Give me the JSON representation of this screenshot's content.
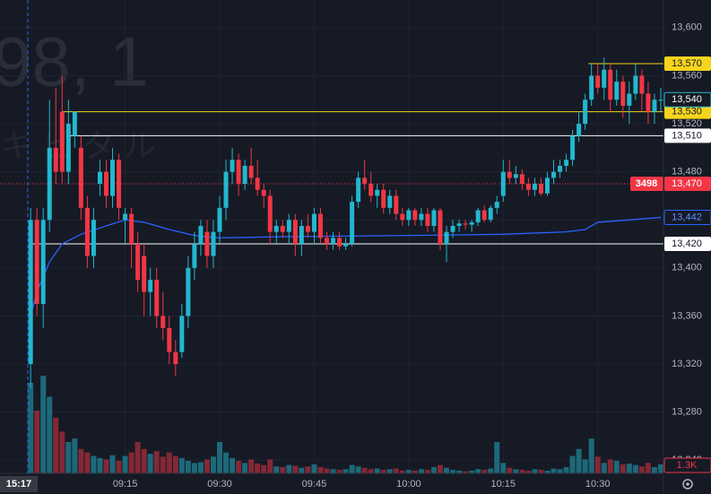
{
  "chart_data": {
    "type": "candlestick",
    "watermark": [
      "98, 1",
      "キピタル"
    ],
    "open": [
      13320,
      13440,
      13370,
      13440,
      13500,
      13530,
      13480,
      13510,
      13500,
      13450,
      13410,
      13470,
      13480,
      13460,
      13490,
      13440,
      13445,
      13420,
      13410,
      13380,
      13390,
      13360,
      13350,
      13330,
      13330,
      13360,
      13400,
      13420,
      13430,
      13410,
      13430,
      13450,
      13480,
      13490,
      13470,
      13485,
      13475,
      13465,
      13460,
      13430,
      13435,
      13430,
      13440,
      13420,
      13435,
      13430,
      13445,
      13425,
      13420,
      13425,
      13418,
      13420,
      13455,
      13475,
      13470,
      13460,
      13465,
      13450,
      13460,
      13445,
      13440,
      13448,
      13440,
      13445,
      13435,
      13448,
      13420,
      13430,
      13435,
      13437,
      13436,
      13438,
      13448,
      13440,
      13450,
      13460,
      13480,
      13475,
      13478,
      13470,
      13465,
      13470,
      13462,
      13475,
      13480,
      13485,
      13490,
      13510,
      13520,
      13540,
      13560,
      13550,
      13565,
      13540,
      13555,
      13535,
      13545,
      13560,
      13545,
      13530,
      13540
    ],
    "high": [
      13450,
      13450,
      13450,
      13540,
      13550,
      13560,
      13540,
      13530,
      13510,
      13460,
      13450,
      13490,
      13490,
      13500,
      13495,
      13450,
      13450,
      13430,
      13420,
      13400,
      13400,
      13380,
      13360,
      13340,
      13370,
      13410,
      13430,
      13440,
      13440,
      13440,
      13460,
      13490,
      13500,
      13495,
      13490,
      13500,
      13490,
      13470,
      13465,
      13440,
      13440,
      13445,
      13445,
      13440,
      13445,
      13450,
      13450,
      13430,
      13430,
      13430,
      13425,
      13460,
      13480,
      13490,
      13480,
      13470,
      13470,
      13465,
      13465,
      13450,
      13450,
      13450,
      13450,
      13450,
      13450,
      13450,
      13435,
      13440,
      13440,
      13440,
      13440,
      13450,
      13452,
      13452,
      13460,
      13490,
      13490,
      13485,
      13482,
      13475,
      13475,
      13475,
      13480,
      13490,
      13490,
      13495,
      13515,
      13530,
      13545,
      13570,
      13570,
      13575,
      13570,
      13565,
      13560,
      13555,
      13570,
      13565,
      13555,
      13545,
      13550
    ],
    "low": [
      13300,
      13360,
      13350,
      13430,
      13470,
      13470,
      13470,
      13500,
      13440,
      13400,
      13400,
      13460,
      13450,
      13450,
      13440,
      13420,
      13400,
      13380,
      13360,
      13360,
      13350,
      13340,
      13320,
      13310,
      13325,
      13350,
      13390,
      13410,
      13400,
      13400,
      13420,
      13440,
      13470,
      13460,
      13465,
      13470,
      13460,
      13450,
      13420,
      13420,
      13425,
      13420,
      13410,
      13410,
      13425,
      13420,
      13420,
      13415,
      13415,
      13415,
      13415,
      13418,
      13450,
      13465,
      13455,
      13450,
      13445,
      13445,
      13440,
      13435,
      13435,
      13435,
      13435,
      13430,
      13430,
      13415,
      13405,
      13425,
      13430,
      13432,
      13430,
      13435,
      13438,
      13438,
      13445,
      13455,
      13470,
      13470,
      13465,
      13460,
      13460,
      13460,
      13460,
      13470,
      13475,
      13480,
      13485,
      13505,
      13515,
      13535,
      13545,
      13540,
      13530,
      13535,
      13525,
      13520,
      13540,
      13530,
      13520,
      13520,
      13530
    ],
    "close": [
      13440,
      13370,
      13440,
      13500,
      13480,
      13480,
      13520,
      13530,
      13450,
      13410,
      13440,
      13480,
      13460,
      13490,
      13450,
      13445,
      13420,
      13390,
      13380,
      13390,
      13360,
      13350,
      13330,
      13320,
      13360,
      13400,
      13420,
      13435,
      13410,
      13430,
      13450,
      13480,
      13490,
      13470,
      13485,
      13475,
      13465,
      13460,
      13430,
      13435,
      13430,
      13440,
      13420,
      13435,
      13430,
      13445,
      13425,
      13420,
      13425,
      13418,
      13420,
      13455,
      13475,
      13470,
      13460,
      13465,
      13450,
      13460,
      13445,
      13440,
      13448,
      13440,
      13445,
      13435,
      13448,
      13420,
      13430,
      13435,
      13437,
      13436,
      13438,
      13448,
      13440,
      13450,
      13455,
      13480,
      13475,
      13478,
      13470,
      13465,
      13470,
      13462,
      13475,
      13480,
      13485,
      13490,
      13510,
      13520,
      13540,
      13560,
      13550,
      13565,
      13540,
      13555,
      13535,
      13545,
      13560,
      13545,
      13530,
      13540,
      13540
    ],
    "up_color": "#22b8cf",
    "down_color": "#f23645",
    "volume": {
      "values": [
        13000,
        9000,
        14000,
        11000,
        8000,
        6000,
        4500,
        5000,
        3500,
        3000,
        2500,
        2200,
        2000,
        2600,
        1800,
        2500,
        3000,
        4500,
        3500,
        2800,
        3200,
        2400,
        3000,
        2500,
        2200,
        1800,
        1500,
        1600,
        2000,
        2400,
        4500,
        3000,
        2200,
        1800,
        1500,
        2000,
        1400,
        1200,
        2000,
        1000,
        900,
        1200,
        1100,
        800,
        1000,
        1300,
        900,
        700,
        600,
        500,
        600,
        1200,
        1000,
        800,
        600,
        700,
        500,
        600,
        700,
        400,
        500,
        400,
        600,
        500,
        900,
        1200,
        800,
        500,
        400,
        300,
        400,
        600,
        500,
        700,
        4500,
        1500,
        800,
        600,
        500,
        400,
        600,
        500,
        400,
        700,
        600,
        900,
        2500,
        3500,
        2000,
        5000,
        2400,
        1500,
        2000,
        1800,
        1300,
        1400,
        1200,
        1000,
        1500,
        900,
        1300
      ],
      "last_label": "1.3K",
      "lim": [
        0,
        18000
      ]
    },
    "vwap": {
      "x": [
        0,
        1,
        3,
        5,
        8,
        12,
        15,
        18,
        22,
        26,
        30,
        40,
        60,
        75,
        85,
        88,
        90,
        100
      ],
      "values": [
        13360,
        13380,
        13405,
        13420,
        13428,
        13435,
        13440,
        13438,
        13432,
        13427,
        13425,
        13426,
        13427,
        13428,
        13430,
        13432,
        13438,
        13442
      ],
      "color": "#2962ff",
      "label": {
        "value": 13442,
        "label": "13,442"
      }
    },
    "levels": [
      {
        "value": 13570,
        "label": "13,570",
        "color": "#f7d51d",
        "from": 88.5
      },
      {
        "value": 13530,
        "label": "13,530",
        "color": "#f7d51d",
        "from": 5
      },
      {
        "value": 13510,
        "label": "13,510",
        "color": "#ffffff",
        "from": 6
      },
      {
        "value": 13420,
        "label": "13,420",
        "color": "#ffffff",
        "from": 0
      }
    ],
    "last_price": {
      "value": 13540,
      "label": "13,540",
      "color": "#22b8cf"
    },
    "marker_price": {
      "value": 13470,
      "label": "13,470",
      "countdown": "3498",
      "color": "#f23645"
    },
    "ylim": [
      13229,
      13623
    ],
    "yticks": [
      {
        "value": 13600,
        "label": "13,600"
      },
      {
        "value": 13560,
        "label": "13,560"
      },
      {
        "value": 13520,
        "label": "13,520"
      },
      {
        "value": 13480,
        "label": "13,480"
      },
      {
        "value": 13440,
        "label": "13,440"
      },
      {
        "value": 13400,
        "label": "13,400"
      },
      {
        "value": 13360,
        "label": "13,360"
      },
      {
        "value": 13320,
        "label": "13,320"
      },
      {
        "value": 13280,
        "label": "13,280"
      },
      {
        "value": 13240,
        "label": "13,240"
      }
    ],
    "xlim": [
      -4.86,
      100.43
    ],
    "xticks": [
      {
        "value": 15,
        "label": "09:15"
      },
      {
        "value": 30,
        "label": "09:30"
      },
      {
        "value": 45,
        "label": "09:45"
      },
      {
        "value": 60,
        "label": "10:00"
      },
      {
        "value": 75,
        "label": "10:15"
      },
      {
        "value": 90,
        "label": "10:30"
      }
    ],
    "crosshair": {
      "label": "15:17"
    }
  }
}
